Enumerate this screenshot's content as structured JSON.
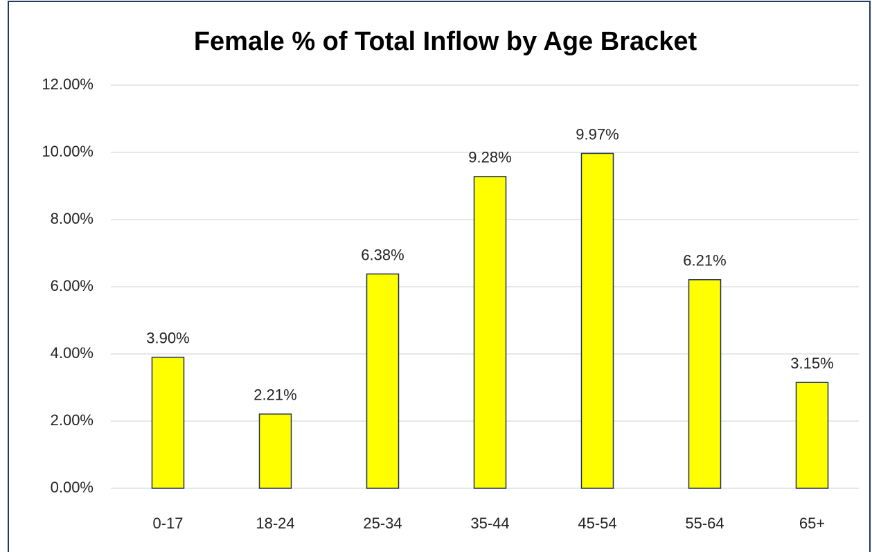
{
  "chart_data": {
    "type": "bar",
    "title": "Female % of Total Inflow by Age Bracket",
    "categories": [
      "0-17",
      "18-24",
      "25-34",
      "35-44",
      "45-54",
      "55-64",
      "65+"
    ],
    "values": [
      3.9,
      2.21,
      6.38,
      9.28,
      9.97,
      6.21,
      3.15
    ],
    "value_labels": [
      "3.90%",
      "2.21%",
      "6.38%",
      "9.28%",
      "9.97%",
      "6.21%",
      "3.15%"
    ],
    "color": "#ffff00",
    "edge_color": "#1f2d5a",
    "ylim": [
      0,
      12
    ],
    "yticks": [
      {
        "value": 0,
        "label": "0.00%"
      },
      {
        "value": 2,
        "label": "2.00%"
      },
      {
        "value": 4,
        "label": "4.00%"
      },
      {
        "value": 6,
        "label": "6.00%"
      },
      {
        "value": 8,
        "label": "8.00%"
      },
      {
        "value": 10,
        "label": "10.00%"
      },
      {
        "value": 12,
        "label": "12.00%"
      }
    ],
    "grid": true
  }
}
